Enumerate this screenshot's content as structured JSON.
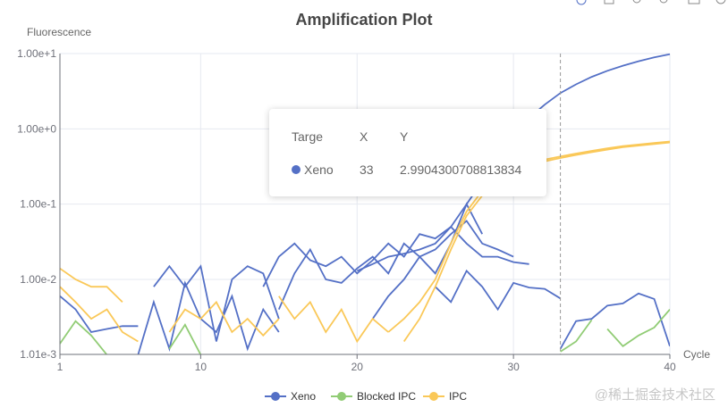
{
  "chart_data": {
    "type": "line",
    "title": "Amplification Plot",
    "xlabel": "Cycle",
    "ylabel": "Fluorescence",
    "xlim": [
      1,
      40
    ],
    "ylim": [
      0.00101,
      10
    ],
    "yscale": "log",
    "x_ticks": [
      "1",
      "10",
      "20",
      "30",
      "40"
    ],
    "x_tick_values": [
      1,
      10,
      20,
      30,
      40
    ],
    "y_ticks": [
      "1.01e-3",
      "1.00e-2",
      "1.00e-1",
      "1.00e+0",
      "1.00e+1"
    ],
    "y_tick_values": [
      0.00101,
      0.01,
      0.1,
      1,
      10
    ],
    "grid": true,
    "legend_position": "bottom",
    "legend": [
      {
        "name": "Xeno",
        "color": "#5470c6"
      },
      {
        "name": "Blocked IPC",
        "color": "#91cc75"
      },
      {
        "name": "IPC",
        "color": "#fac858"
      }
    ],
    "crosshair_x": 33,
    "series": [
      {
        "name": "Xeno",
        "color": "#5470c6",
        "points": [
          [
            20,
            0.013
          ],
          [
            21,
            0.016
          ],
          [
            22,
            0.02
          ],
          [
            23,
            0.022
          ],
          [
            24,
            0.025
          ],
          [
            25,
            0.03
          ],
          [
            26,
            0.05
          ],
          [
            27,
            0.1
          ],
          [
            28,
            0.2
          ],
          [
            29,
            0.4
          ],
          [
            30,
            0.8
          ],
          [
            31,
            1.4
          ],
          [
            32,
            2.1
          ],
          [
            33,
            2.99
          ],
          [
            34,
            3.9
          ],
          [
            35,
            4.9
          ],
          [
            36,
            5.9
          ],
          [
            37,
            6.9
          ],
          [
            38,
            7.9
          ],
          [
            39,
            8.9
          ],
          [
            40,
            9.8
          ]
        ]
      },
      {
        "name": "Xeno",
        "color": "#5470c6",
        "points": [
          [
            14,
            0.008
          ],
          [
            15,
            0.02
          ],
          [
            16,
            0.03
          ],
          [
            17,
            0.018
          ],
          [
            18,
            0.015
          ],
          [
            19,
            0.02
          ],
          [
            20,
            0.012
          ],
          [
            21,
            0.018
          ],
          [
            22,
            0.03
          ],
          [
            23,
            0.02
          ],
          [
            24,
            0.04
          ],
          [
            25,
            0.035
          ],
          [
            26,
            0.05
          ],
          [
            27,
            0.03
          ],
          [
            28,
            0.02
          ],
          [
            29,
            0.02
          ],
          [
            30,
            0.017
          ],
          [
            31,
            0.016
          ]
        ]
      },
      {
        "name": "Xeno",
        "color": "#5470c6",
        "points": [
          [
            15,
            0.004
          ],
          [
            16,
            0.012
          ],
          [
            17,
            0.025
          ],
          [
            18,
            0.01
          ],
          [
            19,
            0.009
          ],
          [
            20,
            0.014
          ],
          [
            21,
            0.02
          ],
          [
            22,
            0.012
          ],
          [
            23,
            0.03
          ],
          [
            24,
            0.02
          ],
          [
            25,
            0.025
          ],
          [
            26,
            0.04
          ],
          [
            27,
            0.06
          ],
          [
            28,
            0.03
          ],
          [
            29,
            0.025
          ],
          [
            30,
            0.02
          ]
        ]
      },
      {
        "name": "Xeno",
        "color": "#5470c6",
        "points": [
          [
            1,
            0.006
          ],
          [
            2,
            0.004
          ],
          [
            3,
            0.002
          ],
          [
            4,
            0.0022
          ],
          [
            5,
            0.0024
          ],
          [
            6,
            0.0024
          ]
        ]
      },
      {
        "name": "Xeno",
        "color": "#5470c6",
        "points": [
          [
            6,
            0.001
          ],
          [
            7,
            0.005
          ],
          [
            8,
            0.0012
          ],
          [
            9,
            0.009
          ],
          [
            10,
            0.003
          ],
          [
            11,
            0.002
          ],
          [
            12,
            0.006
          ],
          [
            13,
            0.0012
          ],
          [
            14,
            0.004
          ],
          [
            15,
            0.002
          ]
        ]
      },
      {
        "name": "Xeno",
        "color": "#5470c6",
        "points": [
          [
            7,
            0.008
          ],
          [
            8,
            0.015
          ],
          [
            9,
            0.008
          ],
          [
            10,
            0.015
          ],
          [
            11,
            0.0015
          ],
          [
            12,
            0.01
          ],
          [
            13,
            0.015
          ],
          [
            14,
            0.012
          ],
          [
            15,
            0.003
          ]
        ]
      },
      {
        "name": "Xeno",
        "color": "#5470c6",
        "points": [
          [
            25,
            0.008
          ],
          [
            26,
            0.005
          ],
          [
            27,
            0.013
          ],
          [
            28,
            0.008
          ],
          [
            29,
            0.004
          ],
          [
            30,
            0.009
          ],
          [
            31,
            0.0078
          ],
          [
            32,
            0.0075
          ],
          [
            33,
            0.0056
          ]
        ]
      },
      {
        "name": "Xeno",
        "color": "#5470c6",
        "points": [
          [
            33,
            0.0012
          ],
          [
            34,
            0.0028
          ],
          [
            35,
            0.003
          ],
          [
            36,
            0.0045
          ],
          [
            37,
            0.0048
          ],
          [
            38,
            0.0065
          ],
          [
            39,
            0.0055
          ],
          [
            40,
            0.0013
          ]
        ]
      },
      {
        "name": "Xeno",
        "color": "#5470c6",
        "points": [
          [
            21,
            0.003
          ],
          [
            22,
            0.006
          ],
          [
            23,
            0.01
          ],
          [
            24,
            0.02
          ],
          [
            25,
            0.012
          ],
          [
            26,
            0.03
          ],
          [
            27,
            0.1
          ],
          [
            28,
            0.04
          ]
        ]
      },
      {
        "name": "Blocked IPC",
        "color": "#91cc75",
        "points": [
          [
            1,
            0.0014
          ],
          [
            2,
            0.0028
          ],
          [
            3,
            0.0018
          ],
          [
            4,
            0.001
          ]
        ]
      },
      {
        "name": "Blocked IPC",
        "color": "#91cc75",
        "points": [
          [
            33,
            0.0011
          ],
          [
            34,
            0.0015
          ],
          [
            35,
            0.0029
          ]
        ]
      },
      {
        "name": "Blocked IPC",
        "color": "#91cc75",
        "points": [
          [
            36,
            0.0022
          ],
          [
            37,
            0.0013
          ],
          [
            38,
            0.0018
          ],
          [
            39,
            0.0023
          ],
          [
            40,
            0.004
          ]
        ]
      },
      {
        "name": "Blocked IPC",
        "color": "#91cc75",
        "points": [
          [
            8,
            0.0012
          ],
          [
            9,
            0.0025
          ],
          [
            10,
            0.001
          ]
        ]
      },
      {
        "name": "IPC",
        "color": "#fac858",
        "points": [
          [
            22,
            0.002
          ],
          [
            23,
            0.003
          ],
          [
            24,
            0.005
          ],
          [
            25,
            0.01
          ],
          [
            26,
            0.03
          ],
          [
            27,
            0.08
          ],
          [
            28,
            0.15
          ],
          [
            29,
            0.22
          ],
          [
            30,
            0.28
          ],
          [
            31,
            0.34
          ],
          [
            32,
            0.39
          ],
          [
            33,
            0.43
          ],
          [
            34,
            0.47
          ],
          [
            35,
            0.51
          ],
          [
            36,
            0.55
          ],
          [
            37,
            0.59
          ],
          [
            38,
            0.62
          ],
          [
            39,
            0.65
          ],
          [
            40,
            0.68
          ]
        ]
      },
      {
        "name": "IPC",
        "color": "#fac858",
        "points": [
          [
            23,
            0.0015
          ],
          [
            24,
            0.003
          ],
          [
            25,
            0.008
          ],
          [
            26,
            0.025
          ],
          [
            27,
            0.07
          ],
          [
            28,
            0.13
          ],
          [
            29,
            0.2
          ],
          [
            30,
            0.26
          ],
          [
            31,
            0.32
          ],
          [
            32,
            0.37
          ],
          [
            33,
            0.41
          ],
          [
            34,
            0.45
          ],
          [
            35,
            0.49
          ],
          [
            36,
            0.53
          ],
          [
            37,
            0.57
          ],
          [
            38,
            0.6
          ],
          [
            39,
            0.63
          ],
          [
            40,
            0.66
          ]
        ]
      },
      {
        "name": "IPC",
        "color": "#fac858",
        "points": [
          [
            1,
            0.014
          ],
          [
            2,
            0.01
          ],
          [
            3,
            0.008
          ],
          [
            4,
            0.008
          ],
          [
            5,
            0.005
          ]
        ]
      },
      {
        "name": "IPC",
        "color": "#fac858",
        "points": [
          [
            1,
            0.008
          ],
          [
            2,
            0.005
          ],
          [
            3,
            0.003
          ],
          [
            4,
            0.004
          ],
          [
            5,
            0.002
          ],
          [
            6,
            0.0015
          ]
        ]
      },
      {
        "name": "IPC",
        "color": "#fac858",
        "points": [
          [
            8,
            0.002
          ],
          [
            9,
            0.004
          ],
          [
            10,
            0.003
          ],
          [
            11,
            0.005
          ],
          [
            12,
            0.002
          ],
          [
            13,
            0.003
          ],
          [
            14,
            0.0018
          ],
          [
            15,
            0.003
          ]
        ]
      },
      {
        "name": "IPC",
        "color": "#fac858",
        "points": [
          [
            15,
            0.006
          ],
          [
            16,
            0.003
          ],
          [
            17,
            0.005
          ],
          [
            18,
            0.002
          ],
          [
            19,
            0.004
          ],
          [
            20,
            0.0015
          ],
          [
            21,
            0.003
          ],
          [
            22,
            0.002
          ]
        ]
      }
    ]
  },
  "tooltip": {
    "headers": [
      "Targe",
      "X",
      "Y"
    ],
    "row": {
      "name": "Xeno",
      "x": "33",
      "y": "2.9904300708813834",
      "color": "#5470c6"
    }
  },
  "watermark": "@稀土掘金技术社区"
}
